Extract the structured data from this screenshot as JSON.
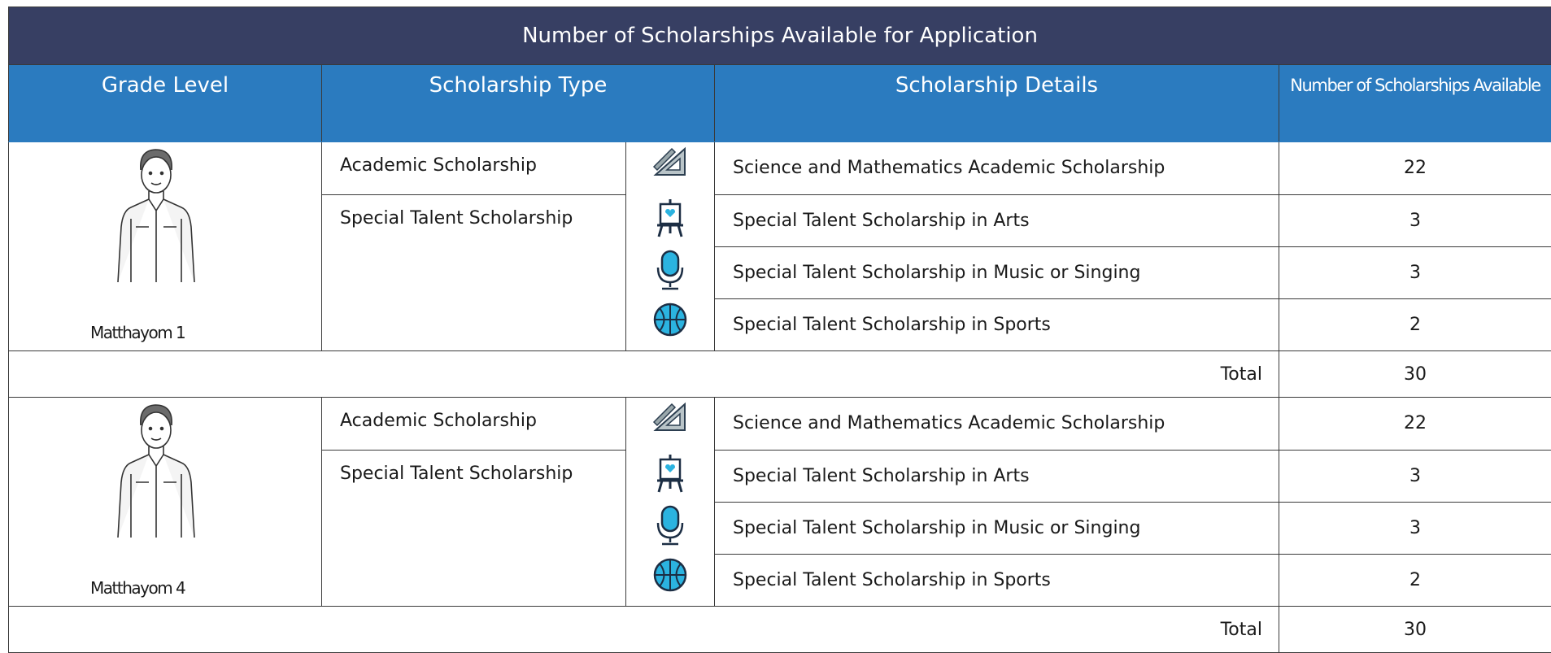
{
  "title": "Number of Scholarships Available for Application",
  "headers": [
    "Grade Level",
    "Scholarship Type",
    "Scholarship Details",
    "Number of Scholarships Available"
  ],
  "groups": [
    {
      "grade": "Matthayom 1",
      "types": [
        {
          "name": "Academic Scholarship",
          "items": [
            {
              "details": "Science and Mathematics Academic Scholarship",
              "count": 22
            }
          ]
        },
        {
          "name": "Special Talent Scholarship",
          "items": [
            {
              "details": "Special Talent Scholarship in Arts",
              "count": 3
            },
            {
              "details": "Special Talent Scholarship in Music or Singing",
              "count": 3
            },
            {
              "details": "Special Talent Scholarship in Sports",
              "count": 2
            }
          ]
        }
      ],
      "total_label": "Total",
      "total": 30
    },
    {
      "grade": "Matthayom 4",
      "types": [
        {
          "name": "Academic Scholarship",
          "items": [
            {
              "details": "Science and Mathematics Academic Scholarship",
              "count": 22
            }
          ]
        },
        {
          "name": "Special Talent Scholarship",
          "items": [
            {
              "details": "Special Talent Scholarship in Arts",
              "count": 3
            },
            {
              "details": "Special Talent Scholarship in Music or Singing",
              "count": 3
            },
            {
              "details": "Special Talent Scholarship in Sports",
              "count": 2
            }
          ]
        }
      ],
      "total_label": "Total",
      "total": 30
    }
  ]
}
